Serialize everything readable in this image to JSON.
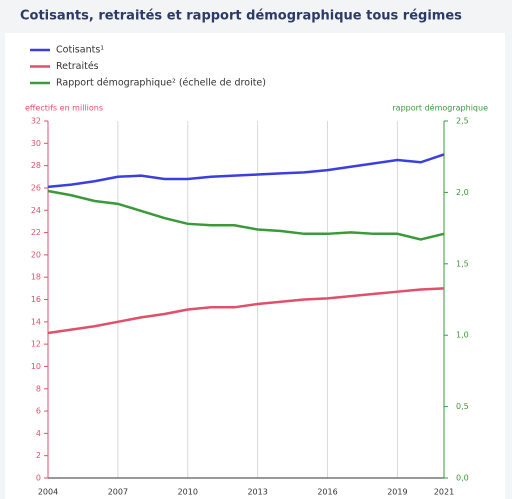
{
  "chart_data": {
    "type": "line",
    "title": "Cotisants, retraités et rapport démographique tous régimes",
    "ylabel": "effectifs en millions",
    "y2label": "rapport démographique",
    "x": [
      2004,
      2005,
      2006,
      2007,
      2008,
      2009,
      2010,
      2011,
      2012,
      2013,
      2014,
      2015,
      2016,
      2017,
      2018,
      2019,
      2020,
      2021
    ],
    "xlim": [
      2004,
      2021
    ],
    "xticks": [
      2004,
      2007,
      2010,
      2013,
      2016,
      2019,
      2021
    ],
    "ylim": [
      0,
      32
    ],
    "yticks": [
      0,
      2,
      4,
      6,
      8,
      10,
      12,
      14,
      16,
      18,
      20,
      22,
      24,
      26,
      28,
      30,
      32
    ],
    "y2lim": [
      0,
      2.5
    ],
    "y2ticks": [
      {
        "value": 0,
        "label": "0,0"
      },
      {
        "value": 0.5,
        "label": "0,5"
      },
      {
        "value": 1,
        "label": "1,0"
      },
      {
        "value": 1.5,
        "label": "1,5"
      },
      {
        "value": 2,
        "label": "2,0"
      },
      {
        "value": 2.5,
        "label": "2,5"
      }
    ],
    "grid": true,
    "ycolor": "#e0506a",
    "y2color": "#3a9a3a",
    "series": [
      {
        "name": "Cotisants¹",
        "color": "#3b3fe0",
        "values": [
          26.1,
          26.3,
          26.6,
          27.0,
          27.1,
          26.8,
          26.8,
          27.0,
          27.1,
          27.2,
          27.3,
          27.4,
          27.6,
          27.9,
          28.2,
          28.5,
          28.3,
          29.0
        ]
      },
      {
        "name": "Retraités",
        "color": "#e0506a",
        "values": [
          13.0,
          13.3,
          13.6,
          14.0,
          14.4,
          14.7,
          15.1,
          15.3,
          15.3,
          15.6,
          15.8,
          16.0,
          16.1,
          16.3,
          16.5,
          16.7,
          16.9,
          17.0
        ]
      },
      {
        "name": "Rapport démographique² (échelle de droite)",
        "color": "#3a9a3a",
        "axis": "y2",
        "values": [
          2.01,
          1.98,
          1.94,
          1.92,
          1.87,
          1.82,
          1.78,
          1.77,
          1.77,
          1.74,
          1.73,
          1.71,
          1.71,
          1.72,
          1.71,
          1.71,
          1.67,
          1.71
        ]
      }
    ]
  }
}
